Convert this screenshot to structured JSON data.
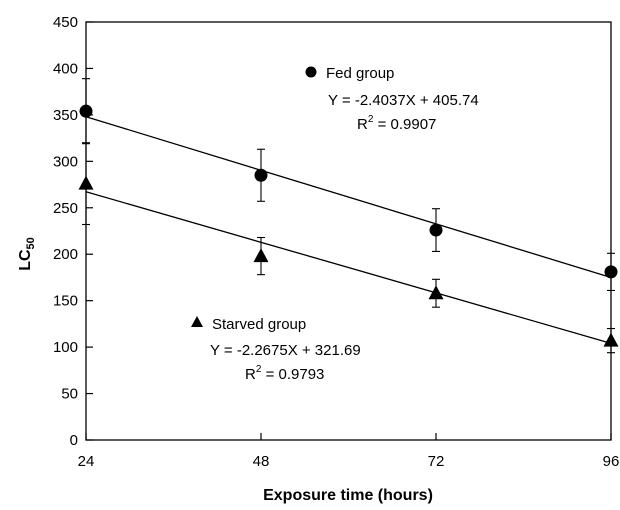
{
  "chart_data": {
    "type": "scatter",
    "xlabel": "Exposure time (hours)",
    "ylabel_main": "LC",
    "ylabel_sub": "50",
    "xlim": [
      24,
      96
    ],
    "ylim": [
      0,
      450
    ],
    "x_ticks": [
      24,
      48,
      72,
      96
    ],
    "y_ticks": [
      0,
      50,
      100,
      150,
      200,
      250,
      300,
      350,
      400,
      450
    ],
    "grid": false,
    "series": [
      {
        "name": "Fed group",
        "marker": "circle",
        "points": [
          {
            "x": 24,
            "y": 354,
            "err": 35
          },
          {
            "x": 48,
            "y": 285,
            "err": 28
          },
          {
            "x": 72,
            "y": 226,
            "err": 23
          },
          {
            "x": 96,
            "y": 181,
            "err": 20
          }
        ],
        "fit": {
          "slope": -2.4037,
          "intercept": 405.74,
          "equation": "Y = -2.4037X + 405.74",
          "r2_prefix": "R",
          "r2_exp": "2",
          "r2_value": " = 0.9907"
        }
      },
      {
        "name": "Starved group",
        "marker": "triangle",
        "points": [
          {
            "x": 24,
            "y": 276,
            "err": 44
          },
          {
            "x": 48,
            "y": 198,
            "err": 20
          },
          {
            "x": 72,
            "y": 158,
            "err": 15
          },
          {
            "x": 96,
            "y": 107,
            "err": 13
          }
        ],
        "fit": {
          "slope": -2.2675,
          "intercept": 321.69,
          "equation": "Y = -2.2675X + 321.69",
          "r2_prefix": "R",
          "r2_exp": "2",
          "r2_value": " = 0.9793"
        }
      }
    ]
  }
}
